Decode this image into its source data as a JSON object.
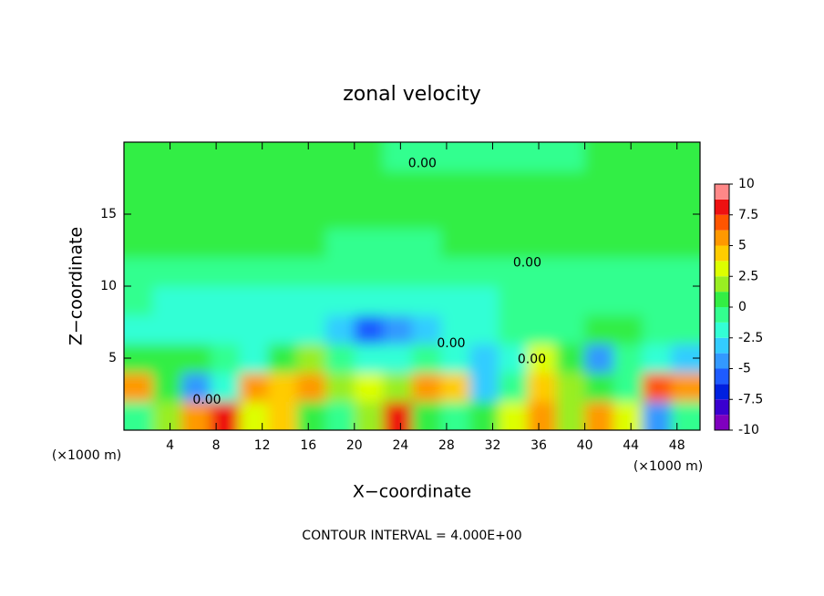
{
  "chart_data": {
    "type": "contour",
    "title": "zonal velocity",
    "xlabel": "X−coordinate",
    "ylabel": "Z−coordinate",
    "xunit": "(×1000 m)",
    "yunit": "(×1000 m)",
    "footer": "CONTOUR INTERVAL = 4.000E+00",
    "xlim": [
      0,
      50
    ],
    "ylim": [
      0,
      20
    ],
    "xticks": [
      4,
      8,
      12,
      16,
      20,
      24,
      28,
      32,
      36,
      40,
      44,
      48
    ],
    "yticks": [
      5,
      10,
      15
    ],
    "x": [
      1.25,
      3.75,
      6.25,
      8.75,
      11.25,
      13.75,
      16.25,
      18.75,
      21.25,
      23.75,
      26.25,
      28.75,
      31.25,
      33.75,
      36.25,
      38.75,
      41.25,
      43.75,
      46.25,
      48.75
    ],
    "y": [
      1,
      3,
      5,
      7,
      9,
      11,
      13,
      15,
      17,
      19
    ],
    "z": [
      [
        -1,
        2,
        6,
        8,
        3,
        4,
        1,
        -1,
        2,
        8,
        1,
        -1,
        1,
        3,
        5,
        2,
        6,
        3,
        -4,
        -1
      ],
      [
        5,
        1,
        -4,
        -2,
        6,
        4,
        5,
        2,
        3,
        2,
        5,
        4,
        -3,
        -1,
        4,
        2,
        0,
        -1,
        7,
        6
      ],
      [
        1,
        0,
        0,
        -1,
        -2,
        1,
        2,
        -1,
        -2,
        -2,
        -1,
        -2,
        -3,
        -2,
        3,
        1,
        -5,
        -1,
        -2,
        -3
      ],
      [
        -2,
        -2.5,
        -2,
        -2,
        -2.5,
        -2,
        -2,
        -3,
        -6,
        -5,
        -3,
        -2,
        -1.5,
        -1,
        -1,
        -0.5,
        0,
        0.5,
        -0.5,
        -1
      ],
      [
        -1,
        -1.5,
        -1.5,
        -1.5,
        -2,
        -2,
        -2,
        -2,
        -2.5,
        -2.5,
        -2,
        -1.5,
        -1.5,
        -1,
        -1,
        -0.5,
        -0.5,
        -0.5,
        -0.5,
        -1
      ],
      [
        -0.5,
        -0.5,
        -0.5,
        -0.5,
        -1,
        -1,
        -1,
        -1,
        -1,
        -1,
        -1,
        -0.5,
        -0.5,
        -0.5,
        -0.5,
        -0.5,
        -0.5,
        -0.5,
        -0.5,
        -0.5
      ],
      [
        0.5,
        0,
        0,
        0,
        0,
        0,
        0,
        -0.5,
        -0.5,
        -0.5,
        -0.5,
        0,
        0,
        0.5,
        0.5,
        0.5,
        0.5,
        0.5,
        0.5,
        0
      ],
      [
        0.5,
        0.5,
        0.5,
        0.5,
        0.5,
        0.5,
        0.3,
        0.3,
        0.3,
        0.3,
        0.3,
        0.3,
        0.3,
        0.8,
        0.8,
        0.8,
        0.8,
        0.8,
        0.5,
        0.5
      ],
      [
        0.5,
        0.5,
        0.5,
        0.5,
        0.5,
        0.5,
        0.5,
        0.5,
        0.5,
        0.5,
        0.5,
        0.5,
        0.5,
        0.5,
        0.5,
        0.5,
        0.5,
        0.5,
        0.5,
        0.5
      ],
      [
        0.5,
        0.5,
        0.5,
        0.5,
        0.5,
        0.5,
        0.5,
        0.5,
        0.5,
        -0.3,
        -0.3,
        -0.3,
        -0.3,
        -0.3,
        -0.3,
        -0.3,
        0.5,
        0.5,
        0.5,
        0.5
      ]
    ],
    "levels": [
      -10,
      -8.75,
      -7.5,
      -6.25,
      -5,
      -3.75,
      -2.5,
      -1.25,
      0,
      1.25,
      2.5,
      3.75,
      5,
      6.25,
      7.5,
      8.75,
      10
    ],
    "colors": [
      "#7f00bf",
      "#3a00d0",
      "#0020e0",
      "#1e5bff",
      "#3399ff",
      "#33ccff",
      "#33ffd5",
      "#33ff8f",
      "#33ee44",
      "#99ee22",
      "#ddff00",
      "#ffcc00",
      "#ff9900",
      "#ff5500",
      "#ee1111",
      "#ff8888"
    ],
    "colorbar_ticks": [
      10,
      7.5,
      5,
      2.5,
      0,
      -2.5,
      -5,
      -7.5,
      -10
    ],
    "annotations": [
      {
        "text": "0.00",
        "x": 7.2,
        "y": 2.1
      },
      {
        "text": "0.00",
        "x": 25.9,
        "y": 18.5
      },
      {
        "text": "0.00",
        "x": 35,
        "y": 11.6
      },
      {
        "text": "0.00",
        "x": 28.4,
        "y": 6
      },
      {
        "text": "0.00",
        "x": 35.4,
        "y": 4.9
      }
    ]
  }
}
